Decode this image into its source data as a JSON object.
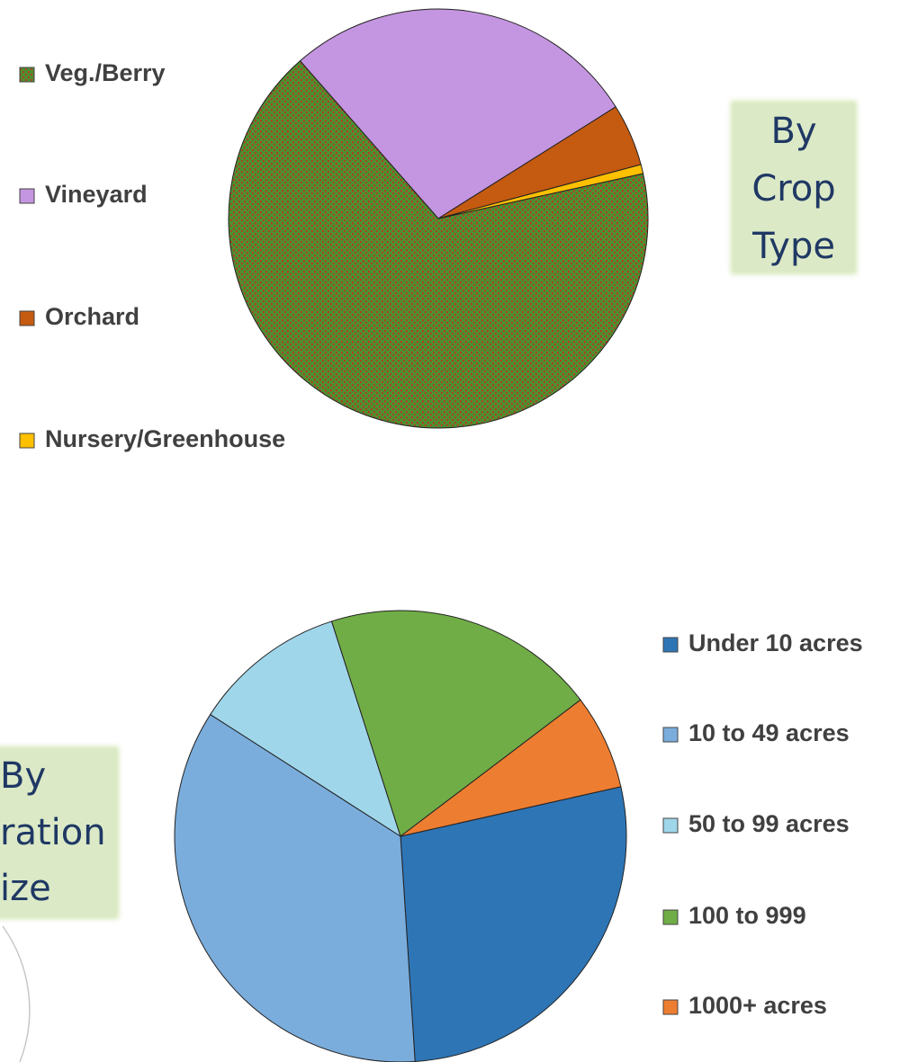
{
  "chart_data": [
    {
      "type": "pie",
      "annotation": [
        "By",
        "Crop",
        "Type"
      ],
      "categories": [
        "Veg./Berry",
        "Vineyard",
        "Orchard",
        "Nursery/Greenhouse"
      ],
      "values": [
        67,
        27.5,
        4.8,
        0.7
      ],
      "colors": [
        "#4e8f2d",
        "#c495e0",
        "#c55a11",
        "#ffc000"
      ],
      "patterned": [
        true,
        false,
        false,
        false
      ]
    },
    {
      "type": "pie",
      "annotation": [
        "By",
        "ration",
        "ize"
      ],
      "categories": [
        "Under 10 acres",
        "10 to 49 acres",
        "50 to 99 acres",
        "100 to 999",
        "1000+ acres"
      ],
      "values": [
        27.5,
        35.1,
        11,
        19.6,
        6.8
      ],
      "colors": [
        "#2e75b6",
        "#7aaddc",
        "#a0d6ea",
        "#70ad47",
        "#ed7d31"
      ]
    }
  ]
}
